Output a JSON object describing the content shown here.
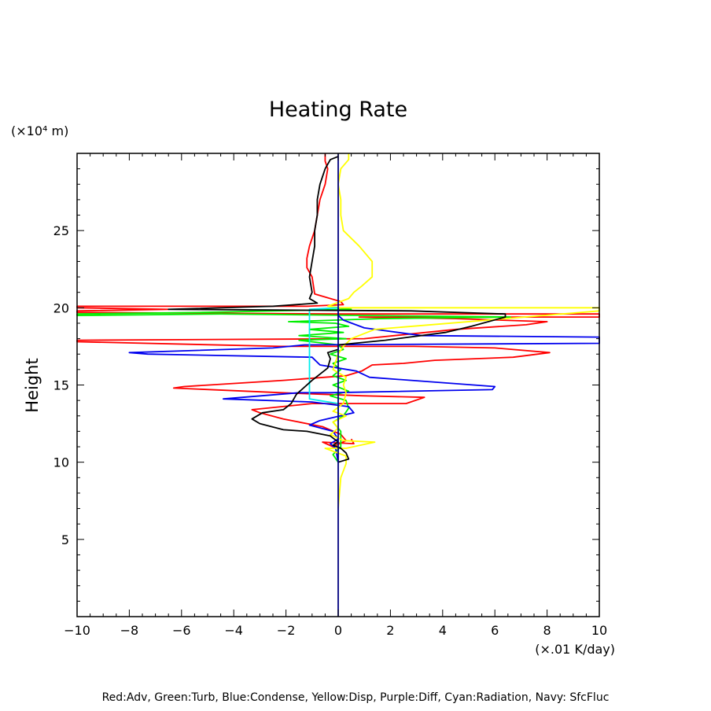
{
  "chart_data": {
    "type": "line",
    "title": "Heating Rate",
    "xlabel": "(×.01 K/day)",
    "ylabel": "Height",
    "yunit": "(×10⁴ m)",
    "xlim": [
      -10,
      10
    ],
    "ylim": [
      0,
      30
    ],
    "xticks": [
      -10,
      -8,
      -6,
      -4,
      -2,
      0,
      2,
      4,
      6,
      8,
      10
    ],
    "yticks": [
      5,
      10,
      15,
      20,
      25
    ],
    "grid": false,
    "footer": "Red:Adv, Green:Turb, Blue:Condense, Yellow:Disp, Purple:Diff, Cyan:Radiation, Navy: SfcFluc",
    "series": [
      {
        "color": "#ff0000",
        "points": [
          [
            0.5,
            11.5
          ],
          [
            0.6,
            11.2
          ],
          [
            -0.6,
            11.3
          ],
          [
            -0.2,
            11.0
          ],
          [
            0.3,
            11.4
          ],
          [
            0.1,
            11.8
          ],
          [
            -0.6,
            12.3
          ],
          [
            -2.1,
            12.8
          ],
          [
            -3.0,
            13.2
          ],
          [
            -3.3,
            13.4
          ],
          [
            -1.0,
            13.8
          ],
          [
            2.6,
            13.8
          ],
          [
            3.3,
            14.2
          ],
          [
            0.9,
            14.3
          ],
          [
            -2.2,
            14.5
          ],
          [
            -6.3,
            14.8
          ],
          [
            -5.9,
            14.9
          ],
          [
            -2.1,
            15.3
          ],
          [
            0.3,
            15.6
          ],
          [
            0.9,
            15.9
          ],
          [
            1.3,
            16.3
          ],
          [
            2.5,
            16.4
          ],
          [
            3.7,
            16.6
          ],
          [
            6.7,
            16.8
          ],
          [
            8.1,
            17.1
          ],
          [
            6.0,
            17.4
          ],
          [
            2.9,
            17.5
          ],
          [
            -2.2,
            17.5
          ],
          [
            -10,
            17.8
          ],
          [
            -10,
            17.9
          ],
          [
            1.0,
            18.0
          ],
          [
            4.5,
            18.6
          ],
          [
            7.2,
            18.9
          ],
          [
            8.0,
            19.1
          ],
          [
            4.5,
            19.3
          ],
          [
            0.8,
            19.4
          ],
          [
            10,
            19.4
          ],
          [
            10,
            19.6
          ],
          [
            0.0,
            19.6
          ],
          [
            -10,
            19.7
          ],
          [
            -10,
            19.8
          ],
          [
            -6.5,
            19.9
          ],
          [
            -10,
            20.0
          ],
          [
            -10,
            20.1
          ],
          [
            -1.2,
            20.1
          ],
          [
            0.2,
            20.2
          ],
          [
            0.1,
            20.4
          ],
          [
            -0.9,
            20.9
          ],
          [
            -1.0,
            22.0
          ],
          [
            -1.2,
            22.6
          ],
          [
            -1.2,
            23.2
          ],
          [
            -1.1,
            24.0
          ],
          [
            -0.9,
            25.0
          ],
          [
            -0.8,
            26.0
          ],
          [
            -0.7,
            27.0
          ],
          [
            -0.5,
            28.0
          ],
          [
            -0.4,
            29.0
          ],
          [
            -0.5,
            29.5
          ],
          [
            -0.5,
            30.0
          ]
        ]
      },
      {
        "color": "#00ee00",
        "points": [
          [
            0.0,
            10.0
          ],
          [
            -0.2,
            10.5
          ],
          [
            0.1,
            11.0
          ],
          [
            0.1,
            12.0
          ],
          [
            -0.2,
            12.6
          ],
          [
            0.2,
            13.0
          ],
          [
            0.4,
            13.5
          ],
          [
            0.3,
            14.0
          ],
          [
            -0.3,
            14.3
          ],
          [
            0.4,
            14.6
          ],
          [
            -0.2,
            15.0
          ],
          [
            0.3,
            15.3
          ],
          [
            -0.2,
            15.6
          ],
          [
            0.1,
            16.0
          ],
          [
            -0.2,
            16.4
          ],
          [
            0.3,
            16.7
          ],
          [
            -0.3,
            17.0
          ],
          [
            0.2,
            17.3
          ],
          [
            0.0,
            17.6
          ],
          [
            -1.5,
            17.9
          ],
          [
            0.3,
            18.0
          ],
          [
            -1.5,
            18.2
          ],
          [
            0.2,
            18.4
          ],
          [
            -1.1,
            18.6
          ],
          [
            0.4,
            18.8
          ],
          [
            -0.1,
            19.0
          ],
          [
            -1.9,
            19.1
          ],
          [
            1.6,
            19.3
          ],
          [
            6.6,
            19.4
          ],
          [
            -4.5,
            19.6
          ],
          [
            -10,
            19.5
          ],
          [
            -10,
            19.6
          ],
          [
            -5.2,
            19.7
          ],
          [
            0.5,
            19.9
          ],
          [
            0.0,
            20.0
          ]
        ]
      },
      {
        "color": "#0000ee",
        "points": [
          [
            0.0,
            10.0
          ],
          [
            -0.1,
            10.9
          ],
          [
            -0.3,
            11.2
          ],
          [
            0.0,
            11.5
          ],
          [
            -0.2,
            12.0
          ],
          [
            -1.1,
            12.4
          ],
          [
            -0.7,
            12.7
          ],
          [
            0.6,
            13.2
          ],
          [
            0.4,
            13.6
          ],
          [
            -1.0,
            13.9
          ],
          [
            -4.4,
            14.1
          ],
          [
            -1.5,
            14.5
          ],
          [
            -0.3,
            14.5
          ],
          [
            5.9,
            14.7
          ],
          [
            6.0,
            14.9
          ],
          [
            1.2,
            15.5
          ],
          [
            0.7,
            15.9
          ],
          [
            -0.7,
            16.3
          ],
          [
            -1.0,
            16.8
          ],
          [
            -7.3,
            17.0
          ],
          [
            -8.0,
            17.1
          ],
          [
            -2.5,
            17.4
          ],
          [
            -1.3,
            17.6
          ],
          [
            10,
            17.7
          ],
          [
            10,
            18.1
          ],
          [
            3.2,
            18.2
          ],
          [
            1.0,
            18.7
          ],
          [
            0.2,
            19.2
          ],
          [
            0.0,
            19.5
          ],
          [
            0.0,
            20.0
          ]
        ]
      },
      {
        "color": "#ffff00",
        "points": [
          [
            0.0,
            7.0
          ],
          [
            0.1,
            9.0
          ],
          [
            0.3,
            9.9
          ],
          [
            0.3,
            10.4
          ],
          [
            -0.5,
            10.9
          ],
          [
            0.3,
            10.9
          ],
          [
            1.4,
            11.3
          ],
          [
            0.2,
            11.4
          ],
          [
            -0.3,
            11.8
          ],
          [
            0.0,
            12.2
          ],
          [
            -0.2,
            12.6
          ],
          [
            0.3,
            13.0
          ],
          [
            -0.2,
            13.3
          ],
          [
            0.2,
            13.8
          ],
          [
            0.3,
            14.5
          ],
          [
            0.2,
            15.0
          ],
          [
            0.3,
            15.5
          ],
          [
            -0.2,
            16.0
          ],
          [
            0.0,
            17.0
          ],
          [
            0.2,
            17.5
          ],
          [
            0.5,
            18.0
          ],
          [
            1.4,
            18.6
          ],
          [
            10,
            19.8
          ],
          [
            10,
            20.0
          ],
          [
            0.1,
            20.0
          ],
          [
            -0.4,
            20.1
          ],
          [
            0.4,
            20.6
          ],
          [
            0.6,
            21.0
          ],
          [
            0.9,
            21.4
          ],
          [
            1.3,
            22.0
          ],
          [
            1.3,
            23.0
          ],
          [
            0.8,
            24.0
          ],
          [
            0.2,
            25.0
          ],
          [
            0.1,
            26.0
          ],
          [
            0.1,
            27.0
          ],
          [
            0.0,
            28.0
          ],
          [
            0.1,
            29.0
          ],
          [
            0.4,
            29.6
          ],
          [
            0.4,
            30.0
          ]
        ]
      },
      {
        "color": "#00eeee",
        "points": [
          [
            0.0,
            12.6
          ],
          [
            0.0,
            13.8
          ],
          [
            -1.1,
            14.1
          ],
          [
            -1.1,
            19.9
          ],
          [
            0.0,
            20.0
          ]
        ]
      },
      {
        "color": "#000000",
        "points": [
          [
            0.0,
            10.0
          ],
          [
            0.4,
            10.2
          ],
          [
            0.3,
            10.6
          ],
          [
            0.1,
            10.9
          ],
          [
            -0.2,
            11.1
          ],
          [
            0.0,
            11.3
          ],
          [
            -0.3,
            11.7
          ],
          [
            -1.2,
            12.0
          ],
          [
            -2.1,
            12.1
          ],
          [
            -3.0,
            12.5
          ],
          [
            -3.3,
            12.8
          ],
          [
            -2.9,
            13.2
          ],
          [
            -2.1,
            13.4
          ],
          [
            -1.8,
            13.8
          ],
          [
            -1.6,
            14.4
          ],
          [
            -1.0,
            15.3
          ],
          [
            -0.4,
            16.1
          ],
          [
            -0.3,
            16.7
          ],
          [
            -0.4,
            17.1
          ],
          [
            0.0,
            17.3
          ],
          [
            0.0,
            17.6
          ],
          [
            1.8,
            17.9
          ],
          [
            4.1,
            18.4
          ],
          [
            5.1,
            18.8
          ],
          [
            6.4,
            19.4
          ],
          [
            6.4,
            19.6
          ],
          [
            2.8,
            19.8
          ],
          [
            -6.5,
            19.9
          ],
          [
            -2.5,
            20.1
          ],
          [
            -0.8,
            20.3
          ],
          [
            -1.1,
            20.6
          ],
          [
            -1.0,
            21.0
          ],
          [
            -1.1,
            22.0
          ],
          [
            -1.0,
            23.0
          ],
          [
            -0.9,
            24.0
          ],
          [
            -0.9,
            25.0
          ],
          [
            -0.8,
            26.0
          ],
          [
            -0.8,
            27.0
          ],
          [
            -0.7,
            28.0
          ],
          [
            -0.5,
            29.0
          ],
          [
            -0.3,
            29.6
          ],
          [
            0.0,
            29.8
          ]
        ]
      },
      {
        "color": "#000080",
        "points": [
          [
            0.0,
            0.0
          ],
          [
            0.0,
            30.0
          ]
        ]
      }
    ]
  }
}
